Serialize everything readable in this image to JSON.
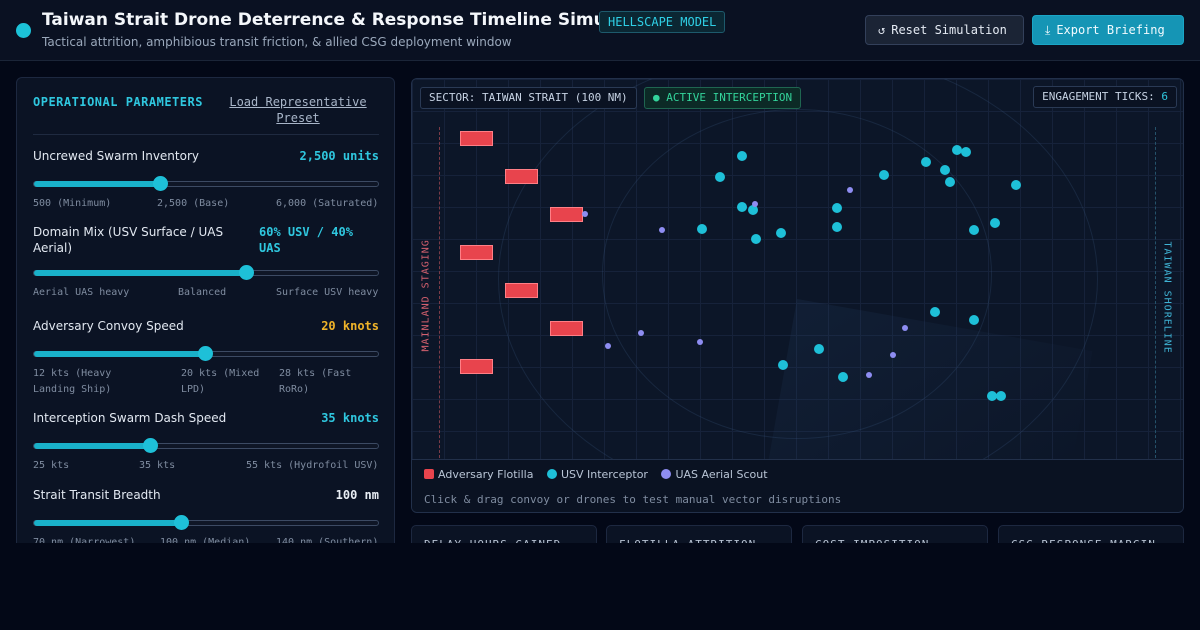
{
  "header": {
    "title": "Taiwan Strait Drone Deterrence & Response Timeline Simulator",
    "badge": "HELLSCAPE MODEL",
    "subtitle": "Tactical attrition, amphibious transit friction, & allied CSG deployment window",
    "reset_label": "Reset Simulation",
    "export_label": "Export Briefing",
    "reset_icon": "reset-icon",
    "export_icon": "download-icon"
  },
  "params": {
    "title": "OPERATIONAL PARAMETERS",
    "preset_link": "Load Representative Preset",
    "items": [
      {
        "label": "Uncrewed Swarm Inventory",
        "value": "2,500 units",
        "value_color": "#2fc7df",
        "level": 0.37,
        "ticks": [
          "500 (Minimum)",
          "2,500 (Base)",
          "6,000 (Saturated)"
        ]
      },
      {
        "label": "Domain Mix (USV Surface / UAS Aerial)",
        "value": "60% USV / 40% UAS",
        "value_color": "#2fc7df",
        "level": 0.62,
        "ticks": [
          "Aerial UAS heavy",
          "Balanced",
          "Surface USV heavy"
        ]
      },
      {
        "label": "Adversary Convoy Speed",
        "value": "20 knots",
        "value_color": "#f0b429",
        "level": 0.5,
        "ticks": [
          "12 kts (Heavy Landing Ship)",
          "20 kts (Mixed LPD)",
          "28 kts (Fast RoRo)"
        ]
      },
      {
        "label": "Interception Swarm Dash Speed",
        "value": "35 knots",
        "value_color": "#2fc7df",
        "level": 0.34,
        "ticks": [
          "25 kts",
          "35 kts",
          "55 kts (Hydrofoil USV)"
        ]
      },
      {
        "label": "Strait Transit Breadth",
        "value": "100 nm",
        "value_color": "#e8edf4",
        "level": 0.43,
        "ticks": [
          "70 nm (Narrowest)",
          "100 nm (Median)",
          "140 nm (Southern)"
        ]
      }
    ]
  },
  "map": {
    "sector": "SECTOR: TAIWAN STRAIT (100 NM)",
    "status": "ACTIVE INTERCEPTION",
    "ticks_label": "ENGAGEMENT TICKS:",
    "ticks_value": "6",
    "staging_label": "MAINLAND STAGING",
    "shore_label": "TAIWAN SHORELINE",
    "legend": {
      "convoy": "Adversary Flotilla",
      "usv": "USV Interceptor",
      "uas": "UAS Aerial Scout"
    },
    "hint": "Click & drag convoy or drones to test manual vector disruptions"
  },
  "stats": [
    {
      "label": "DELAY HOURS GAINED"
    },
    {
      "label": "FLOTILLA ATTRITION"
    },
    {
      "label": "COST IMPOSITION"
    },
    {
      "label": "CSG RESPONSE MARGIN"
    }
  ]
}
